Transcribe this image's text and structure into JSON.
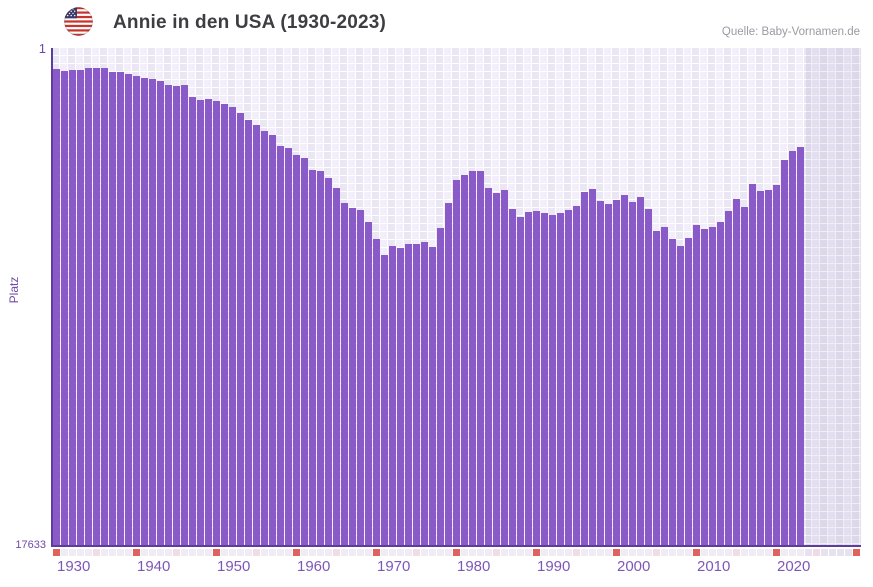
{
  "header": {
    "title": "Annie in den USA (1930-2023)",
    "source": "Quelle: Baby-Vornamen.de"
  },
  "chart_data": {
    "type": "bar",
    "title": "Annie in den USA (1930-2023)",
    "ylabel": "Platz",
    "y_axis": {
      "top_label": "1",
      "bottom_label": "17633",
      "min": 1,
      "max": 17633,
      "inverted": true,
      "scale": "linear"
    },
    "x_ticks": [
      "1930",
      "1940",
      "1950",
      "1960",
      "1970",
      "1980",
      "1990",
      "2000",
      "2010",
      "2020"
    ],
    "strip_years": {
      "start": 1930,
      "end": 2030
    },
    "last_data_year": 2023,
    "years": [
      1930,
      1931,
      1932,
      1933,
      1934,
      1935,
      1936,
      1937,
      1938,
      1939,
      1940,
      1941,
      1942,
      1943,
      1944,
      1945,
      1946,
      1947,
      1948,
      1949,
      1950,
      1951,
      1952,
      1953,
      1954,
      1955,
      1956,
      1957,
      1958,
      1959,
      1960,
      1961,
      1962,
      1963,
      1964,
      1965,
      1966,
      1967,
      1968,
      1969,
      1970,
      1971,
      1972,
      1973,
      1974,
      1975,
      1976,
      1977,
      1978,
      1979,
      1980,
      1981,
      1982,
      1983,
      1984,
      1985,
      1986,
      1987,
      1988,
      1989,
      1990,
      1991,
      1992,
      1993,
      1994,
      1995,
      1996,
      1997,
      1998,
      1999,
      2000,
      2001,
      2002,
      2003,
      2004,
      2005,
      2006,
      2007,
      2008,
      2009,
      2010,
      2011,
      2012,
      2013,
      2014,
      2015,
      2016,
      2017,
      2018,
      2019,
      2020,
      2021,
      2022,
      2023
    ],
    "ranks": [
      746,
      817,
      799,
      799,
      711,
      711,
      728,
      852,
      870,
      906,
      994,
      1048,
      1101,
      1172,
      1296,
      1349,
      1331,
      1757,
      1846,
      1793,
      1881,
      1988,
      2094,
      2307,
      2555,
      2733,
      2946,
      3088,
      3478,
      3531,
      3797,
      3903,
      4329,
      4365,
      4613,
      4968,
      5500,
      5677,
      5731,
      6174,
      6777,
      7327,
      7043,
      7079,
      6937,
      6972,
      6884,
      7061,
      6387,
      5500,
      4684,
      4507,
      4365,
      4365,
      4968,
      5145,
      5039,
      5713,
      6014,
      5819,
      5784,
      5855,
      5926,
      5872,
      5731,
      5606,
      5110,
      5003,
      5429,
      5553,
      5376,
      5216,
      5482,
      5287,
      5713,
      6493,
      6351,
      6794,
      7025,
      6742,
      6281,
      6422,
      6368,
      6191,
      5801,
      5358,
      5641,
      4826,
      5074,
      5039,
      4844,
      3992,
      3638,
      3496
    ],
    "colors": {
      "bar": "#8a5bc8",
      "axis_line": "#5c3c9c",
      "tick_label": "#7d57b7",
      "strip_decade": "#e0625c",
      "strip_half_decade": "#f3dce4",
      "strip_year": "#efecf6",
      "strip_future_year": "#e6e2f0",
      "strip_future_half_decade": "#eedbe6",
      "bg_stripe_dark": "#eae6f3",
      "bg_stripe_light": "#f2effa"
    },
    "legend": null,
    "grid": true
  }
}
